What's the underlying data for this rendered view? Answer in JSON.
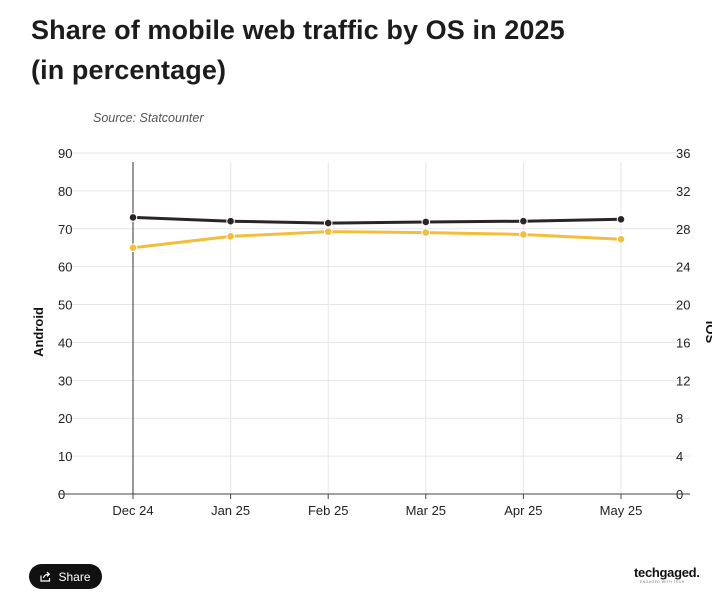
{
  "title_line1": "Share of mobile web traffic by OS in 2025",
  "title_line2": "(in percentage)",
  "source": "Source: Statcounter",
  "share_label": "Share",
  "logo": {
    "name": "techgaged.",
    "tagline": "ENGAGED WITH TECH"
  },
  "colors": {
    "android": "#2b2526",
    "ios": "#f2be3c",
    "grid": "#e6e6e6",
    "axis": "#333333"
  },
  "chart_data": {
    "type": "line",
    "categories": [
      "Dec 24",
      "Jan 25",
      "Feb 25",
      "Mar 25",
      "Apr 25",
      "May 25"
    ],
    "series": [
      {
        "name": "Android",
        "axis": "left",
        "values": [
          73,
          72,
          71.5,
          71.8,
          72,
          72.5
        ]
      },
      {
        "name": "iOS",
        "axis": "right",
        "values": [
          26,
          27.2,
          27.7,
          27.6,
          27.4,
          26.9
        ]
      }
    ],
    "y_left": {
      "label": "Android",
      "ylim": [
        0,
        90
      ],
      "ticks": [
        "90",
        "80",
        "70",
        "60",
        "50",
        "40",
        "30",
        "20",
        "10",
        "0"
      ]
    },
    "y_right": {
      "label": "iOS",
      "ylim": [
        0,
        36
      ],
      "ticks": [
        "36",
        "32",
        "28",
        "24",
        "20",
        "16",
        "12",
        "8",
        "4",
        "0"
      ]
    },
    "grid": true
  }
}
